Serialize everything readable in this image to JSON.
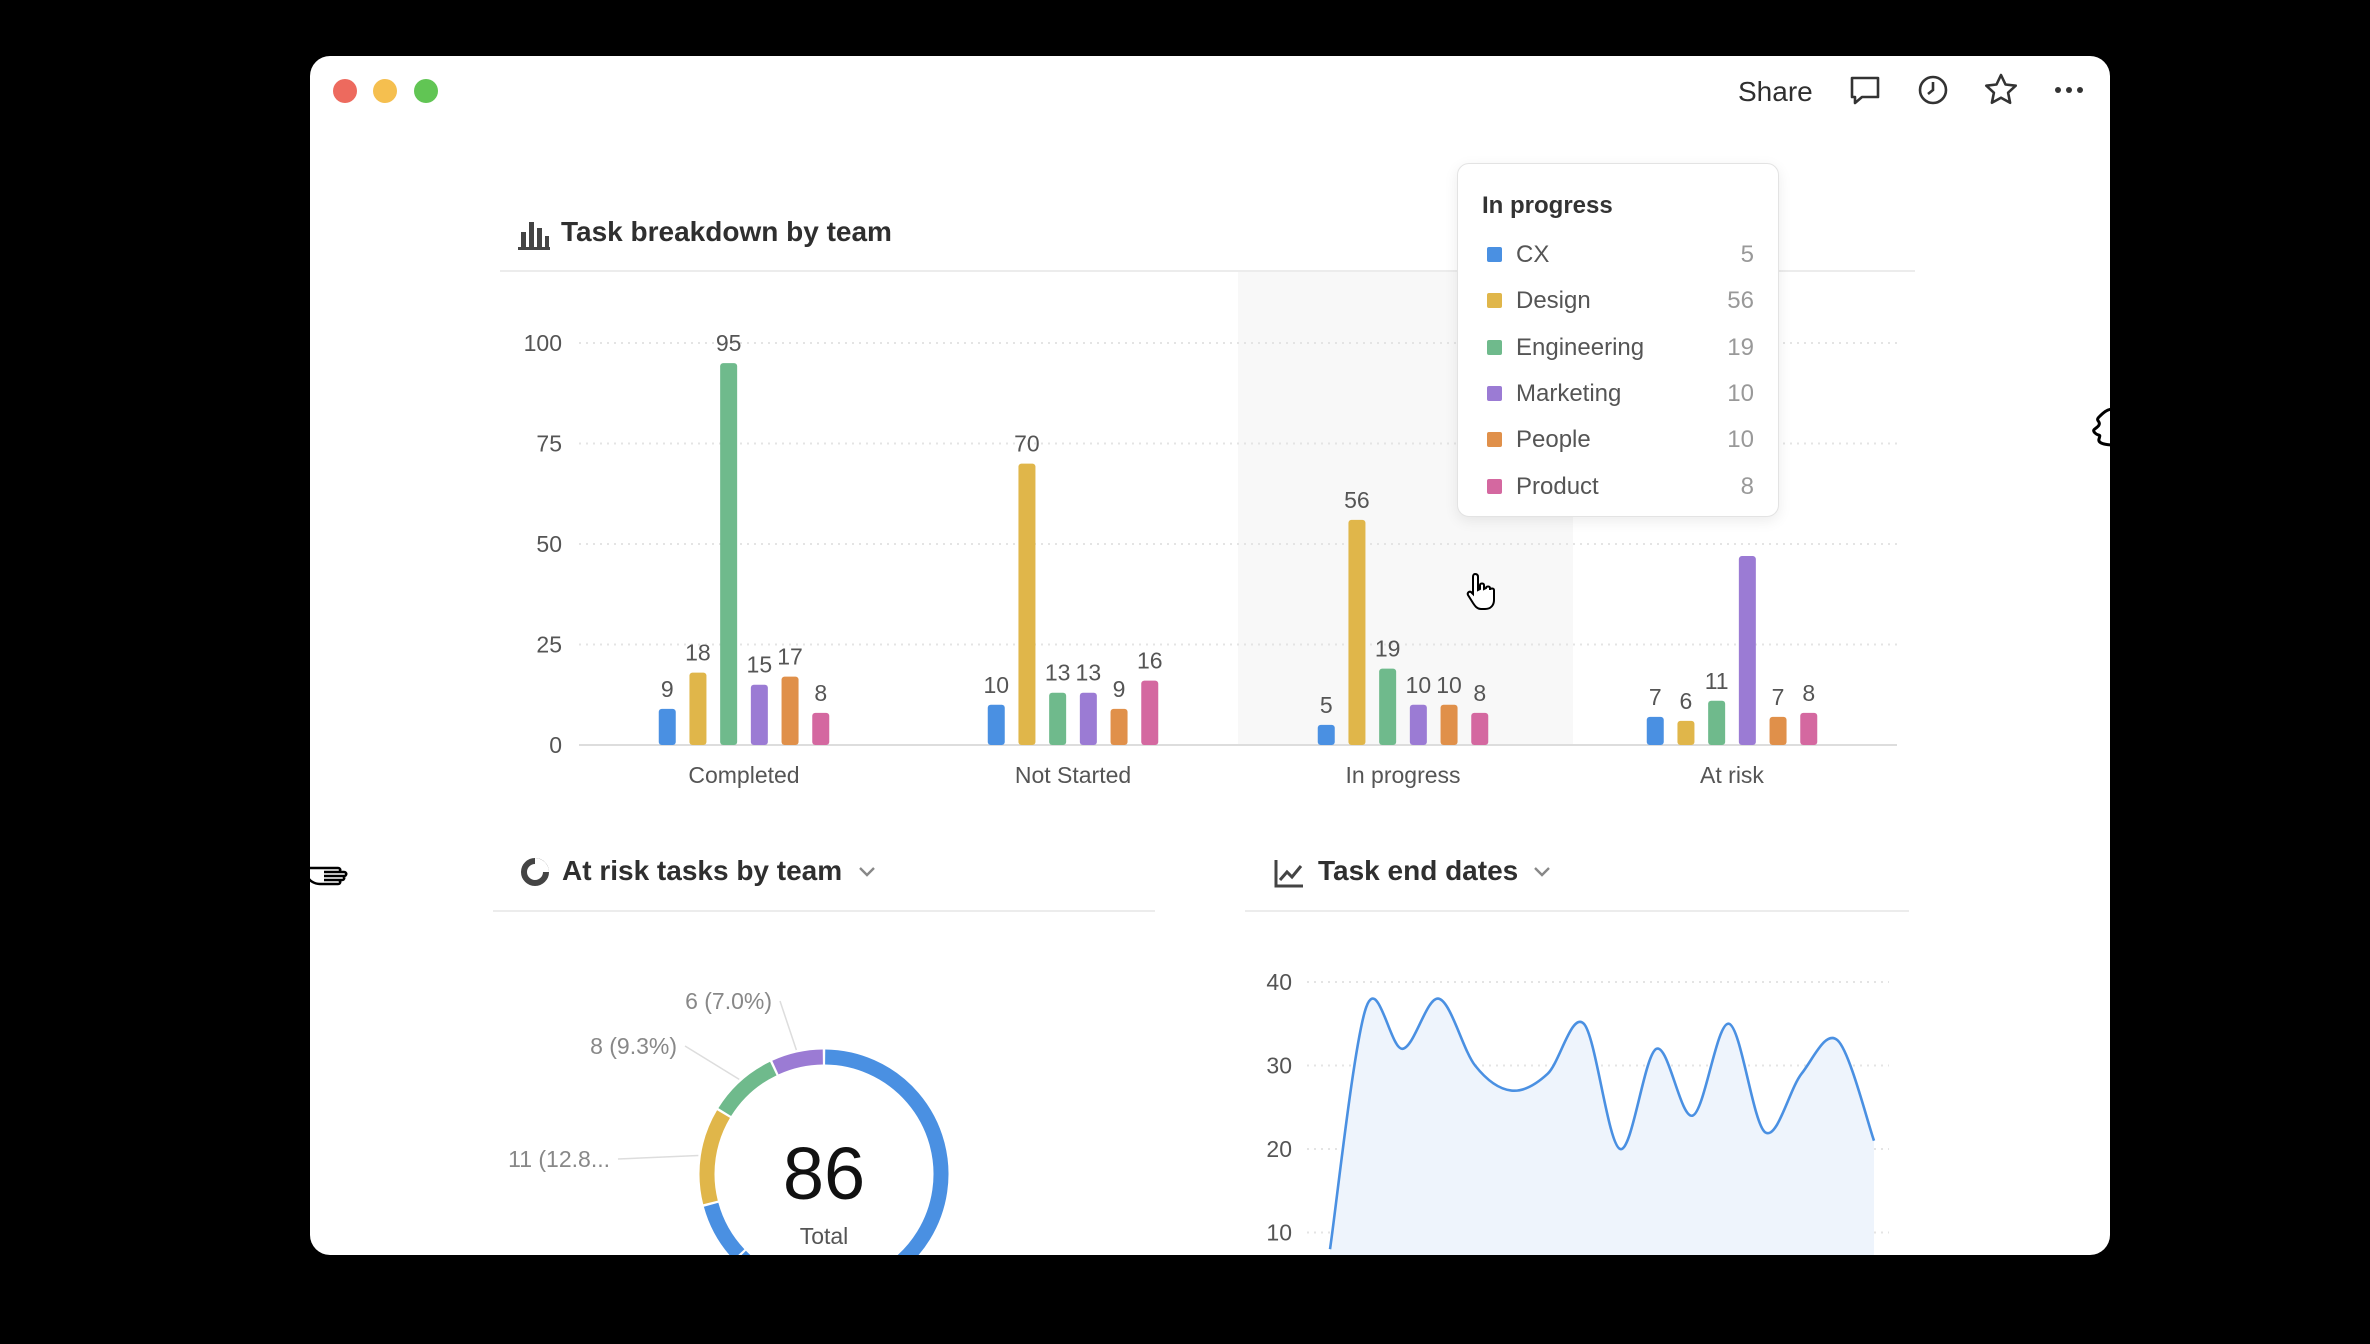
{
  "window": {
    "share_label": "Share",
    "icons": [
      "comment-icon",
      "history-icon",
      "star-icon",
      "more-icon"
    ]
  },
  "colors": {
    "CX": "#4a90e2",
    "Design": "#e0b64a",
    "Engineering": "#6fba8c",
    "Marketing": "#9b7bd4",
    "People": "#e0904a",
    "Product": "#d468a0"
  },
  "chart_data": [
    {
      "type": "bar",
      "title": "Task breakdown by team",
      "categories": [
        "Completed",
        "Not Started",
        "In progress",
        "At risk"
      ],
      "series": [
        {
          "name": "CX",
          "values": [
            9,
            10,
            5,
            7
          ]
        },
        {
          "name": "Design",
          "values": [
            18,
            70,
            56,
            6
          ]
        },
        {
          "name": "Engineering",
          "values": [
            95,
            13,
            19,
            11
          ]
        },
        {
          "name": "Marketing",
          "values": [
            15,
            13,
            10,
            47
          ]
        },
        {
          "name": "People",
          "values": [
            17,
            9,
            10,
            7
          ]
        },
        {
          "name": "Product",
          "values": [
            8,
            16,
            8,
            8
          ]
        }
      ],
      "ylim": [
        0,
        100
      ],
      "yticks": [
        "0",
        "25",
        "50",
        "75",
        "100"
      ],
      "grid": true,
      "highlighted_category": "In progress"
    },
    {
      "type": "pie",
      "title": "At risk tasks by team",
      "center_value": "86",
      "center_label": "Total",
      "slices": [
        {
          "value": 47,
          "color": "#4a90e2",
          "label": ""
        },
        {
          "value": 7,
          "color": "#4a90e2",
          "label": ""
        },
        {
          "value": 7,
          "color": "#4a90e2",
          "label": ""
        },
        {
          "value": 11,
          "color": "#e0b64a",
          "label": "11 (12.8..."
        },
        {
          "value": 8,
          "color": "#6fba8c",
          "label": "8 (9.3%)"
        },
        {
          "value": 6,
          "color": "#9b7bd4",
          "label": "6 (7.0%)"
        }
      ]
    },
    {
      "type": "area",
      "title": "Task end dates",
      "yticks": [
        "10",
        "20",
        "30",
        "40"
      ],
      "ylim_visible": [
        10,
        40
      ],
      "values": [
        8,
        37,
        32,
        38,
        30,
        27,
        29,
        35,
        20,
        32,
        24,
        35,
        22,
        29,
        33,
        21
      ],
      "color": "#4a90e2"
    }
  ],
  "tooltip": {
    "title": "In progress",
    "rows": [
      {
        "label": "CX",
        "value": "5"
      },
      {
        "label": "Design",
        "value": "56"
      },
      {
        "label": "Engineering",
        "value": "19"
      },
      {
        "label": "Marketing",
        "value": "10"
      },
      {
        "label": "People",
        "value": "10"
      },
      {
        "label": "Product",
        "value": "8"
      }
    ]
  }
}
